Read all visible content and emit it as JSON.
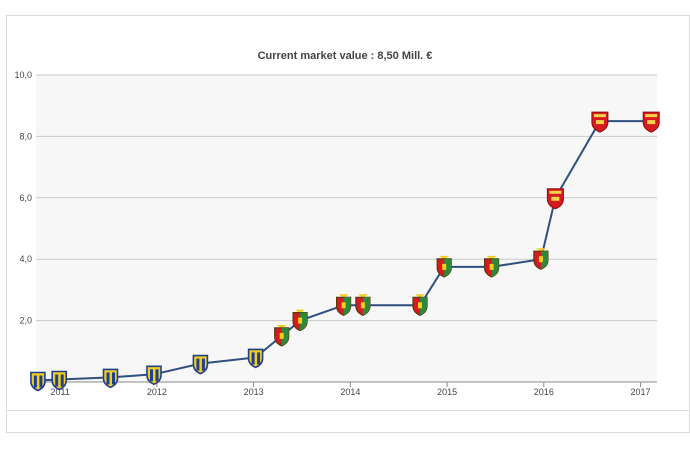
{
  "chart_data": {
    "type": "line",
    "title": "Current market value : 8,50 Mill. €",
    "xlabel": "",
    "ylabel": "",
    "ylim": [
      0,
      10
    ],
    "xlim": [
      2010.75,
      2017.17
    ],
    "grid": true,
    "legend": "none",
    "y_ticks": [
      "10,0",
      "8,0",
      "6,0",
      "4,0",
      "2,0"
    ],
    "y_tick_values": [
      10,
      8,
      6,
      4,
      2
    ],
    "x_ticks": [
      "2011",
      "2012",
      "2013",
      "2014",
      "2015",
      "2016",
      "2017"
    ],
    "x_tick_values": [
      2011,
      2012,
      2013,
      2014,
      2015,
      2016,
      2017
    ],
    "series": [
      {
        "color": "#2f4f7f",
        "points": [
          {
            "x": 2010.77,
            "y": 0.05,
            "club": "yellow-blue"
          },
          {
            "x": 2010.99,
            "y": 0.08,
            "club": "yellow-blue"
          },
          {
            "x": 2011.52,
            "y": 0.15,
            "club": "yellow-blue"
          },
          {
            "x": 2011.97,
            "y": 0.25,
            "club": "yellow-blue"
          },
          {
            "x": 2012.45,
            "y": 0.6,
            "club": "yellow-blue"
          },
          {
            "x": 2013.02,
            "y": 0.8,
            "club": "yellow-blue"
          },
          {
            "x": 2013.29,
            "y": 1.5,
            "club": "red-green"
          },
          {
            "x": 2013.48,
            "y": 2.0,
            "club": "red-green"
          },
          {
            "x": 2013.93,
            "y": 2.5,
            "club": "red-green"
          },
          {
            "x": 2014.13,
            "y": 2.5,
            "club": "red-green"
          },
          {
            "x": 2014.72,
            "y": 2.5,
            "club": "red-green"
          },
          {
            "x": 2014.97,
            "y": 3.75,
            "club": "red-green"
          },
          {
            "x": 2015.46,
            "y": 3.75,
            "club": "red-green"
          },
          {
            "x": 2015.97,
            "y": 4.0,
            "club": "red-green"
          },
          {
            "x": 2016.12,
            "y": 6.0,
            "club": "red"
          },
          {
            "x": 2016.58,
            "y": 8.5,
            "club": "red"
          },
          {
            "x": 2017.11,
            "y": 8.5,
            "club": "red"
          }
        ]
      }
    ]
  },
  "colors": {
    "plot_background": "#f7f7f7",
    "grid": "#c8c8c8",
    "line": "#2f4f7f",
    "crest_yellow": "#f2cf1f",
    "crest_blue": "#1f3f8f",
    "crest_red": "#d71920",
    "crest_green": "#2d8a3a"
  }
}
